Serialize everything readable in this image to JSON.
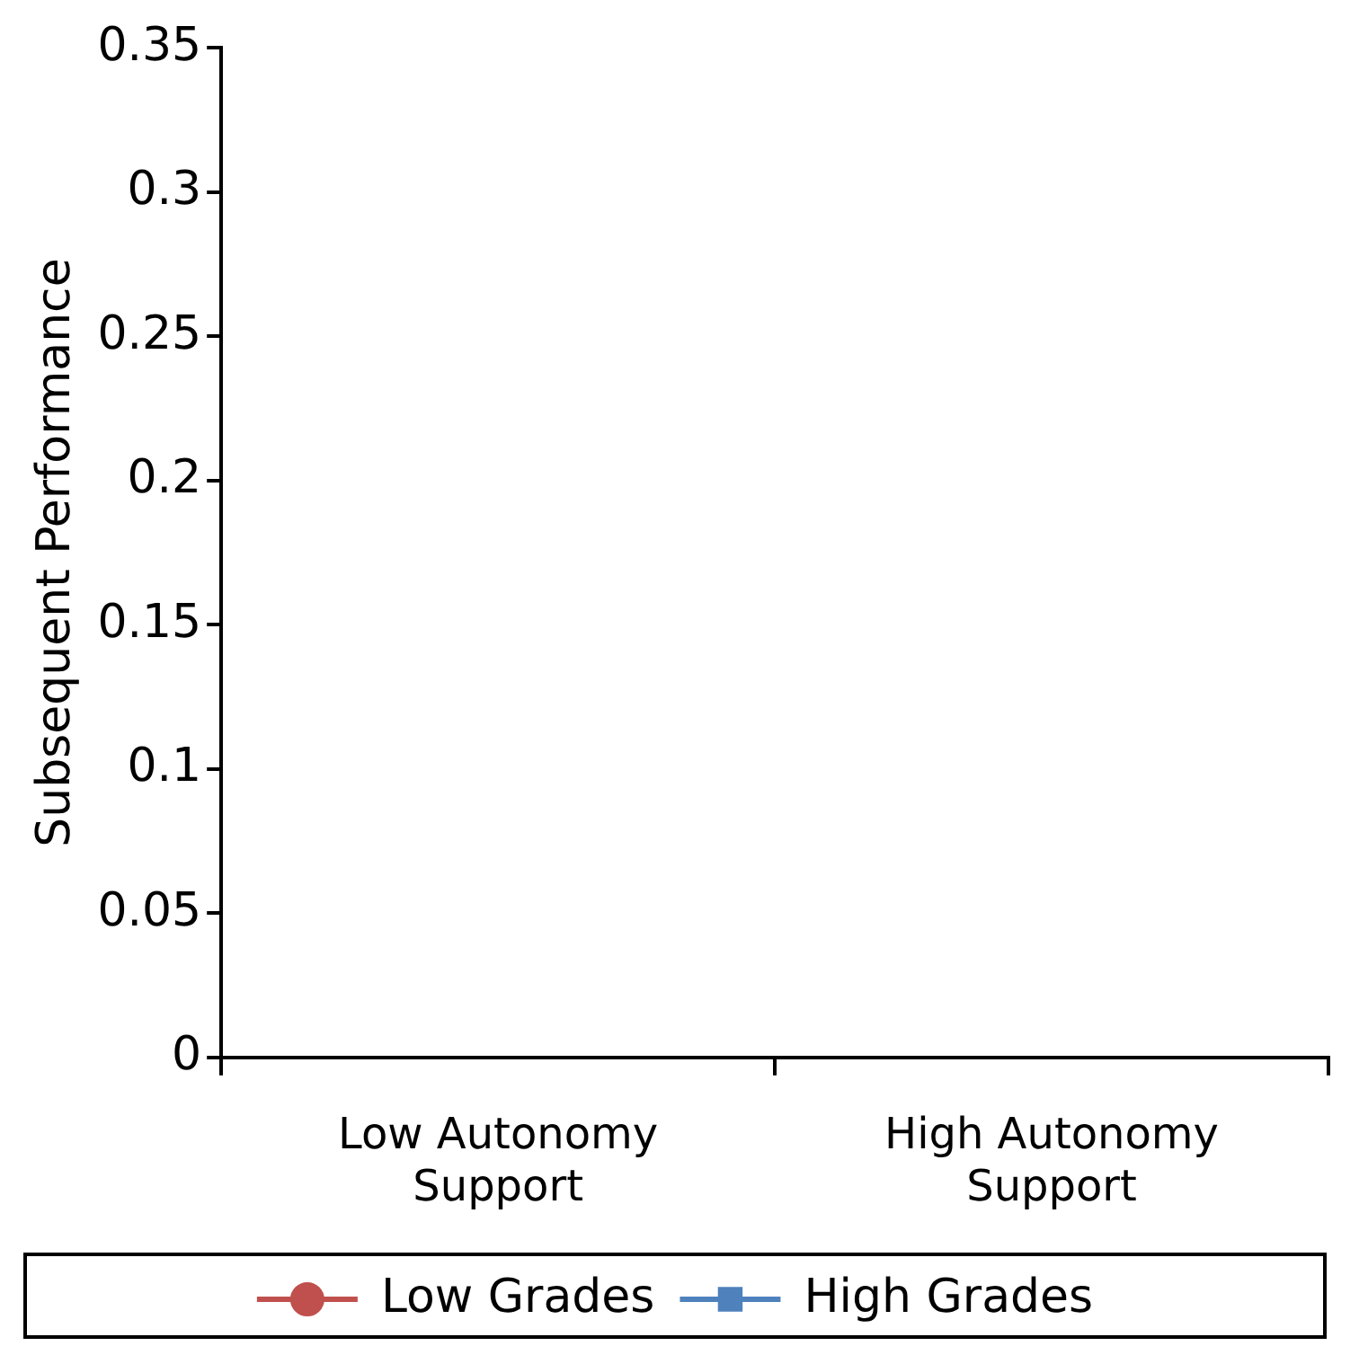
{
  "chart_data": {
    "type": "line",
    "ylabel": "Subsequent Performance",
    "categories": [
      "Low Autonomy Support",
      "High Autonomy Support"
    ],
    "series": [
      {
        "name": "Low Grades",
        "color": "#c0504d",
        "marker": "circle",
        "values": [
          null,
          null
        ]
      },
      {
        "name": "High Grades",
        "color": "#4f81bd",
        "marker": "square",
        "values": [
          null,
          null
        ]
      }
    ],
    "ylim": [
      0,
      0.35
    ],
    "yticks": [
      0,
      0.05,
      0.1,
      0.15,
      0.2,
      0.25,
      0.3,
      0.35
    ],
    "grid": false,
    "legend": "bottom"
  }
}
